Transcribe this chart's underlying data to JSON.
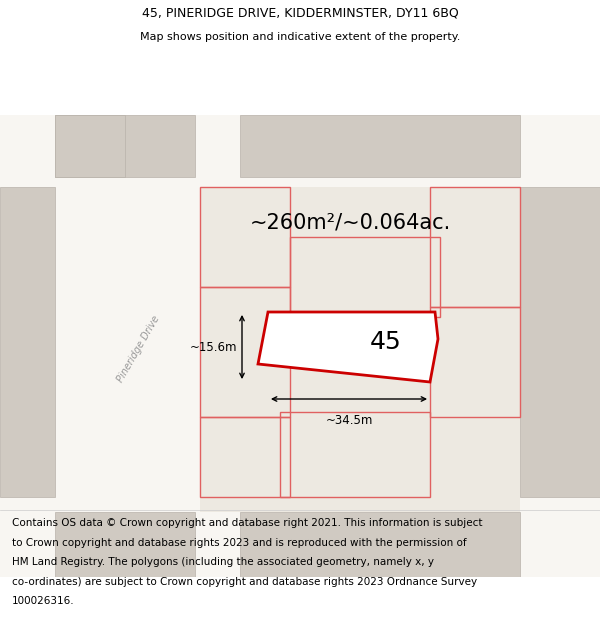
{
  "title_line1": "45, PINERIDGE DRIVE, KIDDERMINSTER, DY11 6BQ",
  "title_line2": "Map shows position and indicative extent of the property.",
  "area_text": "~260m²/~0.064ac.",
  "property_number": "45",
  "dim_width": "~34.5m",
  "dim_height": "~15.6m",
  "street_label": "Pineridge Drive",
  "footer_lines": [
    "Contains OS data © Crown copyright and database right 2021. This information is subject",
    "to Crown copyright and database rights 2023 and is reproduced with the permission of",
    "HM Land Registry. The polygons (including the associated geometry, namely x, y",
    "co-ordinates) are subject to Crown copyright and database rights 2023 Ordnance Survey",
    "100026316."
  ],
  "map_bg": "#ede9e1",
  "road_color": "#f8f6f2",
  "building_fill": "#d0cac2",
  "building_outline": "#b8b2aa",
  "highlight_fill": "#ffffff",
  "highlight_outline": "#cc0000",
  "other_outline": "#e06060",
  "white": "#ffffff",
  "title_fontsize": 9,
  "subtitle_fontsize": 8,
  "area_fontsize": 15,
  "number_fontsize": 18,
  "footer_fontsize": 7.5
}
